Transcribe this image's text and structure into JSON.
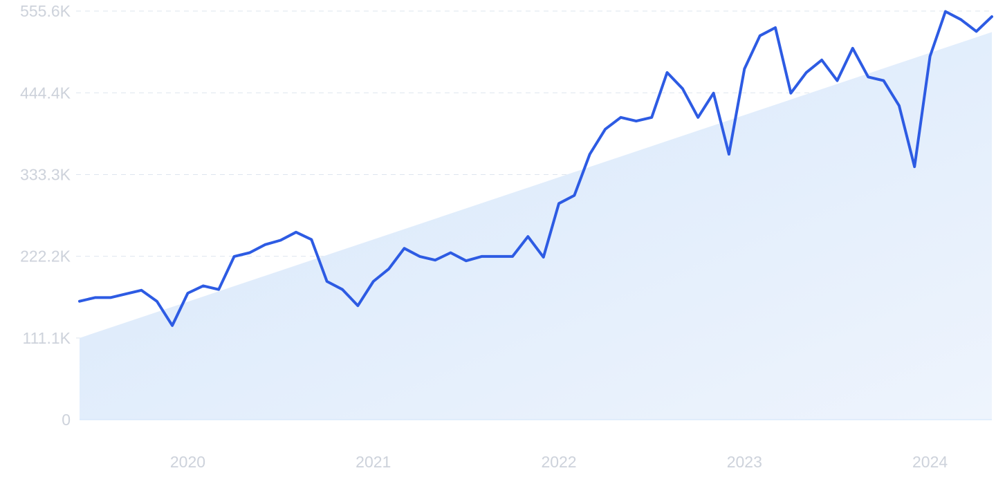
{
  "chart_data": {
    "type": "line",
    "title": "",
    "xlabel": "",
    "ylabel": "",
    "x_start": "2019-06",
    "x_end": "2024-05",
    "xlim": [
      "2019-06",
      "2024-05"
    ],
    "ylim": [
      0,
      555600
    ],
    "y_ticks": [
      0,
      111100,
      222200,
      333300,
      444400,
      555600
    ],
    "y_tick_labels": [
      "0",
      "111.1K",
      "222.2K",
      "333.3K",
      "444.4K",
      "555.6K"
    ],
    "x_tick_labels": [
      "2020",
      "2021",
      "2022",
      "2023",
      "2024"
    ],
    "grid": true,
    "colors": {
      "line": "#2d5be3",
      "trend_fill_start": "#d6e7fa",
      "trend_fill_end": "#eef4fd",
      "grid": "#dde5ee",
      "tick_text": "#cdd2db"
    },
    "trend": {
      "type": "area",
      "start_value": 111100,
      "end_value": 527000
    },
    "series": [
      {
        "type": "line",
        "values": [
          161000,
          166000,
          166000,
          171000,
          176000,
          161000,
          128000,
          172000,
          182000,
          177000,
          222000,
          227000,
          238000,
          244000,
          255000,
          245000,
          188000,
          177000,
          155000,
          188000,
          205000,
          233000,
          222000,
          217000,
          227000,
          216000,
          222000,
          222000,
          222000,
          249000,
          221000,
          294000,
          305000,
          361000,
          395000,
          411000,
          406000,
          411000,
          472000,
          450000,
          411000,
          444000,
          361000,
          477000,
          522000,
          533000,
          444000,
          472000,
          489000,
          461000,
          505000,
          466000,
          461000,
          427000,
          344000,
          494000,
          555000,
          544000,
          528000,
          548000
        ]
      }
    ]
  }
}
